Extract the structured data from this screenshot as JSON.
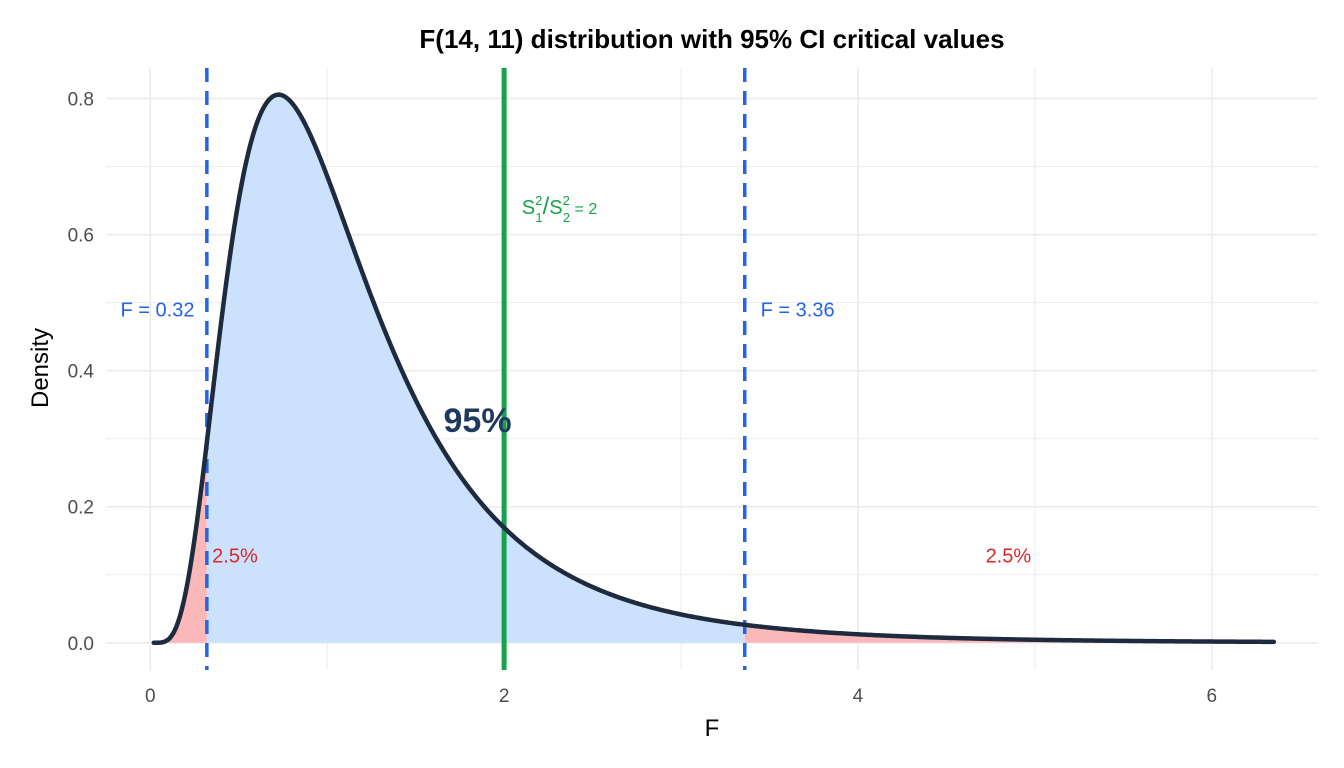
{
  "chart_data": {
    "type": "area",
    "title": "F(14, 11) distribution with 95% CI critical values",
    "xlabel": "F",
    "ylabel": "Density",
    "xlim": [
      -0.25,
      6.6
    ],
    "ylim": [
      -0.04,
      0.845
    ],
    "x_ticks": [
      0,
      2,
      4,
      6
    ],
    "x_tick_labels": [
      "0",
      "2",
      "4",
      "6"
    ],
    "y_ticks": [
      0.0,
      0.2,
      0.4,
      0.6,
      0.8
    ],
    "y_tick_labels": [
      "0.0",
      "0.2",
      "0.4",
      "0.6",
      "0.8"
    ],
    "grid": true,
    "df1": 14,
    "df2": 11,
    "x_range": [
      0.02,
      6.35
    ],
    "critical_values": {
      "lower": 0.32,
      "upper": 3.36
    },
    "observed_ratio": 2,
    "labels": {
      "lower": "F = 0.32",
      "upper": "F = 3.36",
      "center_pct": "95%",
      "left_tail_pct": "2.5%",
      "right_tail_pct": "2.5%",
      "ratio_prefix": "S",
      "ratio_sub1": "1",
      "ratio_sup": "2",
      "ratio_slash": "/",
      "ratio_sub2": "2",
      "ratio_equals": " = 2"
    },
    "label_positions": {
      "lower": {
        "x": 0.25,
        "y": 0.48
      },
      "upper": {
        "x": 3.45,
        "y": 0.48
      },
      "center_pct": {
        "x": 1.85,
        "y": 0.31
      },
      "left_tail_pct": {
        "x": 0.35,
        "y": 0.118
      },
      "right_tail_pct": {
        "x": 4.85,
        "y": 0.118
      },
      "ratio": {
        "x": 2.1,
        "y": 0.63
      }
    },
    "colors": {
      "curve": "#1e2a3d",
      "center_fill": "#cce1fb",
      "tail_fill": "#fcb8b8",
      "critical": "#2563eb",
      "observed": "#16a34a",
      "center_text": "#1e3a5f",
      "tail_text": "#dc2626",
      "grid": "#ebebeb"
    }
  }
}
